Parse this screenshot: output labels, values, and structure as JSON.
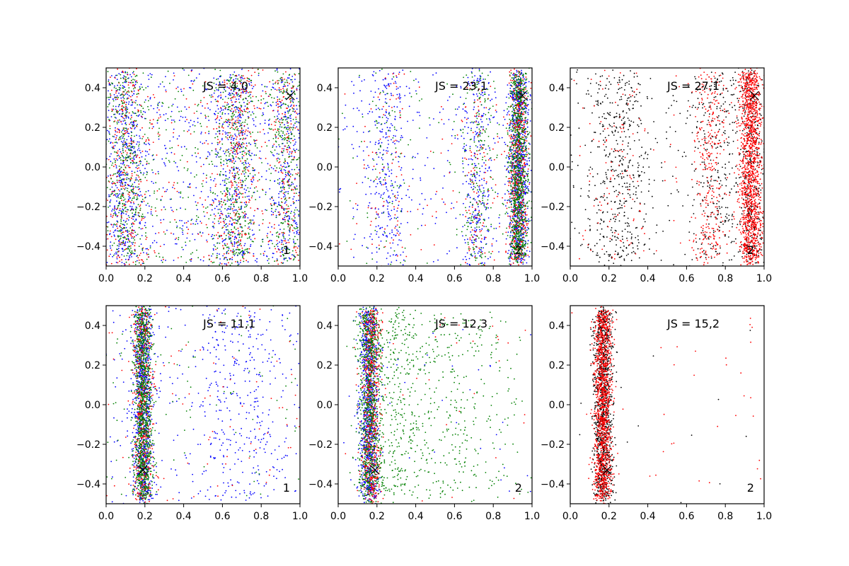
{
  "chart_data": [
    {
      "type": "scatter",
      "annotation": "JS = 4,0",
      "panel_label": "1",
      "xlim": [
        0.0,
        1.0
      ],
      "ylim": [
        -0.5,
        0.5
      ],
      "xticks": [
        "0.0",
        "0.2",
        "0.4",
        "0.6",
        "0.8",
        "1.0"
      ],
      "yticks": [
        "0.4",
        "0.2",
        "0.0",
        "−0.2",
        "−0.4"
      ],
      "marker": {
        "x": 0.95,
        "y": 0.36
      },
      "series": [
        {
          "color": "#0000ff",
          "clusters": [
            {
              "cx": 0.1,
              "sx": 0.05,
              "n": 400
            },
            {
              "cx": 0.65,
              "sx": 0.06,
              "n": 350
            },
            {
              "cx": 0.93,
              "sx": 0.04,
              "n": 200
            },
            {
              "cx": 0.5,
              "sx": 0.3,
              "n": 600
            }
          ]
        },
        {
          "color": "#ff0000",
          "clusters": [
            {
              "cx": 0.1,
              "sx": 0.05,
              "n": 250
            },
            {
              "cx": 0.67,
              "sx": 0.05,
              "n": 250
            },
            {
              "cx": 0.93,
              "sx": 0.04,
              "n": 150
            },
            {
              "cx": 0.5,
              "sx": 0.3,
              "n": 300
            }
          ]
        },
        {
          "color": "#008000",
          "clusters": [
            {
              "cx": 0.1,
              "sx": 0.05,
              "n": 350
            },
            {
              "cx": 0.67,
              "sx": 0.05,
              "n": 350
            },
            {
              "cx": 0.93,
              "sx": 0.04,
              "n": 250
            },
            {
              "cx": 0.5,
              "sx": 0.3,
              "n": 400
            }
          ]
        }
      ]
    },
    {
      "type": "scatter",
      "annotation": "JS = 23,1",
      "panel_label": "2",
      "xlim": [
        0.0,
        1.0
      ],
      "ylim": [
        -0.5,
        0.5
      ],
      "xticks": [
        "0.0",
        "0.2",
        "0.4",
        "0.6",
        "0.8",
        "1.0"
      ],
      "yticks": [
        "0.4",
        "0.2",
        "0.0",
        "−0.2",
        "−0.4"
      ],
      "marker": {
        "x": 0.95,
        "y": 0.36
      },
      "series": [
        {
          "color": "#0000ff",
          "clusters": [
            {
              "cx": 0.93,
              "sx": 0.025,
              "n": 900
            },
            {
              "cx": 0.72,
              "sx": 0.04,
              "n": 250
            },
            {
              "cx": 0.25,
              "sx": 0.05,
              "n": 250
            },
            {
              "cx": 0.5,
              "sx": 0.3,
              "n": 250
            }
          ]
        },
        {
          "color": "#ff0000",
          "clusters": [
            {
              "cx": 0.93,
              "sx": 0.025,
              "n": 600
            },
            {
              "cx": 0.72,
              "sx": 0.04,
              "n": 100
            },
            {
              "cx": 0.25,
              "sx": 0.05,
              "n": 60
            },
            {
              "cx": 0.5,
              "sx": 0.3,
              "n": 80
            }
          ]
        },
        {
          "color": "#008000",
          "clusters": [
            {
              "cx": 0.93,
              "sx": 0.025,
              "n": 900
            },
            {
              "cx": 0.72,
              "sx": 0.04,
              "n": 200
            },
            {
              "cx": 0.25,
              "sx": 0.05,
              "n": 60
            },
            {
              "cx": 0.5,
              "sx": 0.3,
              "n": 80
            }
          ]
        }
      ]
    },
    {
      "type": "scatter",
      "annotation": "JS = 27,1",
      "panel_label": "2",
      "xlim": [
        0.0,
        1.0
      ],
      "ylim": [
        -0.5,
        0.5
      ],
      "xticks": [
        "0.0",
        "0.2",
        "0.4",
        "0.6",
        "0.8",
        "1.0"
      ],
      "yticks": [
        "0.4",
        "0.2",
        "0.0",
        "−0.2",
        "−0.4"
      ],
      "marker": {
        "x": 0.95,
        "y": 0.36
      },
      "series": [
        {
          "color": "#000000",
          "clusters": [
            {
              "cx": 0.25,
              "sx": 0.08,
              "n": 400
            },
            {
              "cx": 0.75,
              "sx": 0.06,
              "n": 250
            },
            {
              "cx": 0.93,
              "sx": 0.03,
              "n": 350
            },
            {
              "cx": 0.5,
              "sx": 0.3,
              "n": 250
            }
          ]
        },
        {
          "color": "#ff0000",
          "clusters": [
            {
              "cx": 0.93,
              "sx": 0.03,
              "n": 1400
            },
            {
              "cx": 0.72,
              "sx": 0.04,
              "n": 300
            },
            {
              "cx": 0.25,
              "sx": 0.08,
              "n": 80
            },
            {
              "cx": 0.5,
              "sx": 0.3,
              "n": 80
            }
          ]
        }
      ]
    },
    {
      "type": "scatter",
      "annotation": "JS = 11,1",
      "panel_label": "1",
      "xlim": [
        0.0,
        1.0
      ],
      "ylim": [
        -0.5,
        0.5
      ],
      "xticks": [
        "0.0",
        "0.2",
        "0.4",
        "0.6",
        "0.8",
        "1.0"
      ],
      "yticks": [
        "0.4",
        "0.2",
        "0.0",
        "−0.2",
        "−0.4"
      ],
      "marker": {
        "x": 0.19,
        "y": -0.33
      },
      "series": [
        {
          "color": "#0000ff",
          "clusters": [
            {
              "cx": 0.19,
              "sx": 0.025,
              "n": 900
            },
            {
              "cx": 0.62,
              "sx": 0.06,
              "n": 120
            },
            {
              "cx": 0.78,
              "sx": 0.06,
              "n": 120
            },
            {
              "cx": 0.5,
              "sx": 0.3,
              "n": 250
            }
          ]
        },
        {
          "color": "#ff0000",
          "clusters": [
            {
              "cx": 0.19,
              "sx": 0.025,
              "n": 600
            },
            {
              "cx": 0.5,
              "sx": 0.3,
              "n": 80
            }
          ]
        },
        {
          "color": "#008000",
          "clusters": [
            {
              "cx": 0.19,
              "sx": 0.025,
              "n": 1000
            },
            {
              "cx": 0.5,
              "sx": 0.3,
              "n": 80
            }
          ]
        }
      ]
    },
    {
      "type": "scatter",
      "annotation": "JS = 12,3",
      "panel_label": "2",
      "xlim": [
        0.0,
        1.0
      ],
      "ylim": [
        -0.5,
        0.5
      ],
      "xticks": [
        "0.0",
        "0.2",
        "0.4",
        "0.6",
        "0.8",
        "1.0"
      ],
      "yticks": [
        "0.4",
        "0.2",
        "0.0",
        "−0.2",
        "−0.4"
      ],
      "marker": {
        "x": 0.19,
        "y": -0.33
      },
      "series": [
        {
          "color": "#0000ff",
          "clusters": [
            {
              "cx": 0.16,
              "sx": 0.025,
              "n": 1000
            },
            {
              "cx": 0.5,
              "sx": 0.3,
              "n": 40
            }
          ]
        },
        {
          "color": "#ff0000",
          "clusters": [
            {
              "cx": 0.17,
              "sx": 0.025,
              "n": 700
            },
            {
              "cx": 0.5,
              "sx": 0.3,
              "n": 30
            }
          ]
        },
        {
          "color": "#008000",
          "clusters": [
            {
              "cx": 0.16,
              "sx": 0.03,
              "n": 800
            },
            {
              "cx": 0.3,
              "sx": 0.07,
              "n": 300
            },
            {
              "cx": 0.6,
              "sx": 0.2,
              "n": 400
            }
          ]
        }
      ]
    },
    {
      "type": "scatter",
      "annotation": "JS = 15,2",
      "panel_label": "2",
      "xlim": [
        0.0,
        1.0
      ],
      "ylim": [
        -0.5,
        0.5
      ],
      "xticks": [
        "0.0",
        "0.2",
        "0.4",
        "0.6",
        "0.8",
        "1.0"
      ],
      "yticks": [
        "0.4",
        "0.2",
        "0.0",
        "−0.2",
        "−0.4"
      ],
      "marker": {
        "x": 0.19,
        "y": -0.33
      },
      "series": [
        {
          "color": "#000000",
          "clusters": [
            {
              "cx": 0.17,
              "sx": 0.025,
              "n": 1100
            },
            {
              "cx": 0.5,
              "sx": 0.3,
              "n": 10
            }
          ]
        },
        {
          "color": "#ff0000",
          "clusters": [
            {
              "cx": 0.17,
              "sx": 0.022,
              "n": 1300
            },
            {
              "cx": 0.6,
              "sx": 0.25,
              "n": 40
            }
          ]
        }
      ]
    }
  ]
}
